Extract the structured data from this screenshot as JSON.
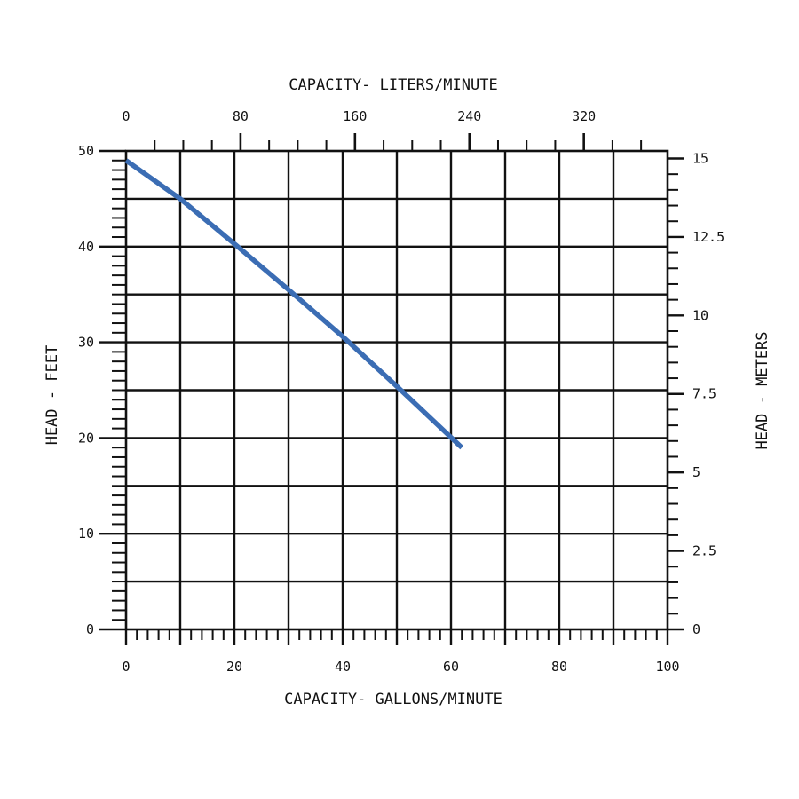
{
  "chart_data": {
    "type": "line",
    "title": "",
    "xlabel_bottom": "CAPACITY- GALLONS/MINUTE",
    "xlabel_top": "CAPACITY- LITERS/MINUTE",
    "ylabel_left": "HEAD - FEET",
    "ylabel_right": "HEAD - METERS",
    "xlim": [
      0,
      100
    ],
    "ylim": [
      0,
      50
    ],
    "x_ticks_bottom": [
      "0",
      "20",
      "40",
      "60",
      "80",
      "100"
    ],
    "x_ticks_top": [
      "0",
      "80",
      "160",
      "240",
      "320"
    ],
    "y_ticks_left": [
      "0",
      "10",
      "20",
      "30",
      "40",
      "50"
    ],
    "y_ticks_right": [
      "0",
      "2.5",
      "5",
      "7.5",
      "10",
      "12.5",
      "15"
    ],
    "grid": true,
    "line_color": "#3b6db4",
    "series": [
      {
        "x": [
          0,
          10,
          20,
          30,
          40,
          50,
          62
        ],
        "y": [
          49,
          45,
          40.3,
          35.5,
          30.6,
          25.4,
          19
        ]
      }
    ]
  }
}
